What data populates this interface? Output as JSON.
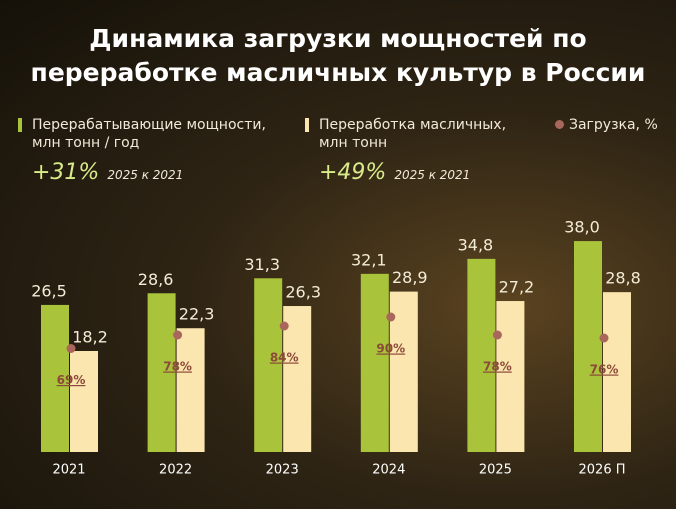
{
  "chart_data": {
    "type": "bar",
    "title": "Динамика загрузки мощностей по переработке масличных культур в России",
    "categories": [
      "2021",
      "2022",
      "2023",
      "2024",
      "2025",
      "2026 П"
    ],
    "series": [
      {
        "name": "Перерабатывающие мощности, млн тонн / год",
        "color": "#a9c43b",
        "values": [
          26.5,
          28.6,
          31.3,
          32.1,
          34.8,
          38.0
        ],
        "value_labels": [
          "26,5",
          "28,6",
          "31,3",
          "32,1",
          "34,8",
          "38,0"
        ]
      },
      {
        "name": "Переработка масличных, млн тонн",
        "color": "#fbe6b0",
        "values": [
          18.2,
          22.3,
          26.3,
          28.9,
          27.2,
          28.8
        ],
        "value_labels": [
          "18,2",
          "22,3",
          "26,3",
          "28,9",
          "27,2",
          "28,8"
        ]
      },
      {
        "name": "Загрузка, %",
        "color": "#a8675a",
        "type": "dot",
        "values": [
          69,
          78,
          84,
          90,
          78,
          76
        ],
        "value_labels": [
          "69%",
          "78%",
          "84%",
          "90%",
          "78%",
          "76%"
        ]
      }
    ],
    "annotations": [
      {
        "text": "+31%",
        "note": "2025 к 2021"
      },
      {
        "text": "+49%",
        "note": "2025 к 2021"
      }
    ]
  }
}
